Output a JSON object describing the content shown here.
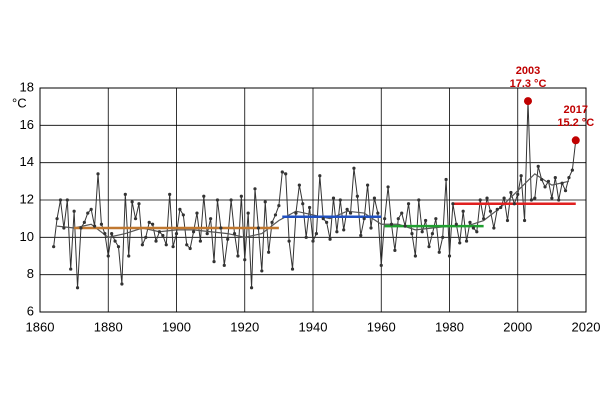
{
  "chart_data": {
    "type": "line",
    "y_label": "°C",
    "xlim": [
      1860,
      2020
    ],
    "xticks": [
      1860,
      1880,
      1900,
      1920,
      1940,
      1960,
      1980,
      2000,
      2020
    ],
    "ylim": [
      6,
      18
    ],
    "yticks": [
      6,
      8,
      10,
      12,
      14,
      16,
      18
    ],
    "grid": true,
    "series": [
      {
        "color": "#333333",
        "markers": true,
        "x": [
          1864,
          1865,
          1866,
          1867,
          1868,
          1869,
          1870,
          1871,
          1872,
          1873,
          1874,
          1875,
          1876,
          1877,
          1878,
          1879,
          1880,
          1881,
          1882,
          1883,
          1884,
          1885,
          1886,
          1887,
          1888,
          1889,
          1890,
          1891,
          1892,
          1893,
          1894,
          1895,
          1896,
          1897,
          1898,
          1899,
          1900,
          1901,
          1902,
          1903,
          1904,
          1905,
          1906,
          1907,
          1908,
          1909,
          1910,
          1911,
          1912,
          1913,
          1914,
          1915,
          1916,
          1917,
          1918,
          1919,
          1920,
          1921,
          1922,
          1923,
          1924,
          1925,
          1926,
          1927,
          1928,
          1929,
          1930,
          1931,
          1932,
          1933,
          1934,
          1935,
          1936,
          1937,
          1938,
          1939,
          1940,
          1941,
          1942,
          1943,
          1944,
          1945,
          1946,
          1947,
          1948,
          1949,
          1950,
          1951,
          1952,
          1953,
          1954,
          1955,
          1956,
          1957,
          1958,
          1959,
          1960,
          1961,
          1962,
          1963,
          1964,
          1965,
          1966,
          1967,
          1968,
          1969,
          1970,
          1971,
          1972,
          1973,
          1974,
          1975,
          1976,
          1977,
          1978,
          1979,
          1980,
          1981,
          1982,
          1983,
          1984,
          1985,
          1986,
          1987,
          1988,
          1989,
          1990,
          1991,
          1992,
          1993,
          1994,
          1995,
          1996,
          1997,
          1998,
          1999,
          2000,
          2001,
          2002,
          2003,
          2004,
          2005,
          2006,
          2007,
          2008,
          2009,
          2010,
          2011,
          2012,
          2013,
          2014,
          2015,
          2016,
          2017
        ],
        "values": [
          9.5,
          11.0,
          12.0,
          10.5,
          12.0,
          8.3,
          11.4,
          7.3,
          10.5,
          10.8,
          11.3,
          11.5,
          10.6,
          13.4,
          10.7,
          10.2,
          9.0,
          10.2,
          9.8,
          9.5,
          7.5,
          12.3,
          9.0,
          11.9,
          11.0,
          11.8,
          9.6,
          10.0,
          10.8,
          10.7,
          9.8,
          10.3,
          10.1,
          9.6,
          12.3,
          9.5,
          10.2,
          11.5,
          11.2,
          9.6,
          9.4,
          10.3,
          11.3,
          9.8,
          12.2,
          10.2,
          11.0,
          8.7,
          12.0,
          10.5,
          8.5,
          9.9,
          12.0,
          10.2,
          9.0,
          12.2,
          8.8,
          11.3,
          7.3,
          12.6,
          10.5,
          8.2,
          11.9,
          9.2,
          10.8,
          11.2,
          11.7,
          13.5,
          13.4,
          9.8,
          8.3,
          11.3,
          12.8,
          11.8,
          10.0,
          11.6,
          9.8,
          10.2,
          13.3,
          11.0,
          10.8,
          9.9,
          12.1,
          10.3,
          12.0,
          10.4,
          11.5,
          11.3,
          13.7,
          12.2,
          10.1,
          11.0,
          12.8,
          10.5,
          12.1,
          11.3,
          8.5,
          11.0,
          12.7,
          10.7,
          9.3,
          11.0,
          11.3,
          10.6,
          11.8,
          10.2,
          9.0,
          12.0,
          10.3,
          10.9,
          9.5,
          10.2,
          11.0,
          9.2,
          10.0,
          13.1,
          9.0,
          11.8,
          10.7,
          9.7,
          11.4,
          9.8,
          10.8,
          10.5,
          10.3,
          12.0,
          11.0,
          12.1,
          11.4,
          10.5,
          11.5,
          11.6,
          12.1,
          10.9,
          12.4,
          11.8,
          12.3,
          13.3,
          10.9,
          17.3,
          12.0,
          12.1,
          13.8,
          13.1,
          12.7,
          13.0,
          12.1,
          13.2,
          12.0,
          12.9,
          12.5,
          13.2,
          13.6,
          15.2
        ]
      },
      {
        "color": "#555555",
        "markers": false,
        "x": [
          1865,
          1870,
          1875,
          1880,
          1885,
          1890,
          1895,
          1900,
          1905,
          1910,
          1915,
          1920,
          1925,
          1930,
          1935,
          1940,
          1945,
          1950,
          1955,
          1960,
          1965,
          1970,
          1975,
          1980,
          1985,
          1990,
          1995,
          2000,
          2005,
          2010,
          2015
        ],
        "values": [
          10.6,
          10.5,
          10.7,
          10.0,
          10.2,
          10.5,
          10.3,
          10.4,
          10.4,
          10.3,
          10.2,
          10.0,
          10.2,
          10.9,
          11.4,
          11.2,
          11.0,
          11.4,
          11.3,
          10.7,
          10.7,
          10.4,
          10.5,
          10.6,
          10.6,
          10.9,
          11.6,
          12.5,
          13.4,
          12.8,
          13.0
        ]
      }
    ],
    "reference_lines": [
      {
        "x": [
          1870,
          1930
        ],
        "value": 10.5,
        "color": "#c07830"
      },
      {
        "x": [
          1931,
          1960
        ],
        "value": 11.1,
        "color": "#2050c0"
      },
      {
        "x": [
          1961,
          1990
        ],
        "value": 10.6,
        "color": "#20a030"
      },
      {
        "x": [
          1981,
          2017
        ],
        "value": 11.8,
        "color": "#e02020"
      }
    ],
    "annotations": [
      {
        "x": 2003,
        "color": "#c00000",
        "lines": [
          "2003",
          "17.3 °C"
        ]
      },
      {
        "x": 2017,
        "color": "#c00000",
        "lines": [
          "2017",
          "15.2 °C"
        ]
      }
    ]
  }
}
